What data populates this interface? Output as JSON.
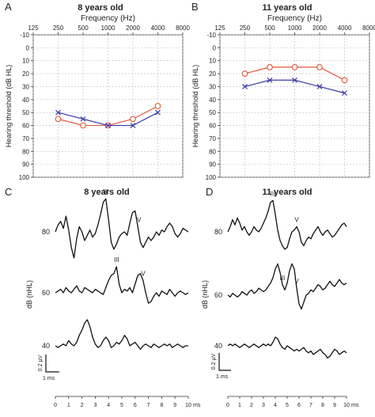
{
  "panels_text": {
    "A": {
      "letter": "A",
      "title": "8 years old"
    },
    "B": {
      "letter": "B",
      "title": "11 years old"
    },
    "C": {
      "letter": "C",
      "title": "8 years old"
    },
    "D": {
      "letter": "D",
      "title": "11 years old"
    }
  },
  "colors": {
    "right_ear": "#e0573a",
    "left_ear": "#3a3aa8",
    "trace": "#111111",
    "grid": "#bbbbbb"
  },
  "chart_data": [
    {
      "id": "A",
      "type": "line",
      "title": "8 years old",
      "xlabel": "Frequency (Hz)",
      "ylabel": "Hearing threshold (dB HL)",
      "x_scale": "log2",
      "x_ticks": [
        "125",
        "250",
        "500",
        "1000",
        "2000",
        "4000",
        "8000"
      ],
      "y_ticks": [
        "-10",
        "0",
        "10",
        "20",
        "30",
        "40",
        "50",
        "60",
        "70",
        "80",
        "90",
        "100"
      ],
      "ylim": [
        -10,
        100
      ],
      "y_inverted": true,
      "grid": true,
      "x": [
        250,
        500,
        1000,
        2000,
        4000
      ],
      "series": [
        {
          "marker": "circle",
          "color": "#e0573a",
          "values": [
            55,
            60,
            60,
            55,
            45
          ]
        },
        {
          "marker": "x",
          "color": "#3a3aa8",
          "values": [
            50,
            55,
            60,
            60,
            50
          ]
        }
      ]
    },
    {
      "id": "B",
      "type": "line",
      "title": "11 years old",
      "xlabel": "Frequency (Hz)",
      "ylabel": "Hearing threshold (dB HL)",
      "x_scale": "log2",
      "x_ticks": [
        "125",
        "250",
        "500",
        "1000",
        "2000",
        "4000",
        "8000"
      ],
      "y_ticks": [
        "-10",
        "0",
        "10",
        "20",
        "30",
        "40",
        "50",
        "60",
        "70",
        "80",
        "90",
        "100"
      ],
      "ylim": [
        -10,
        100
      ],
      "y_inverted": true,
      "grid": true,
      "x": [
        250,
        500,
        1000,
        2000,
        4000
      ],
      "series": [
        {
          "marker": "circle",
          "color": "#e0573a",
          "values": [
            20,
            15,
            15,
            15,
            25
          ]
        },
        {
          "marker": "x",
          "color": "#3a3aa8",
          "values": [
            30,
            25,
            25,
            30,
            35
          ]
        }
      ]
    },
    {
      "id": "C",
      "type": "line",
      "title": "8 years old",
      "ylabel": "dB (nHL)",
      "xlim": [
        0,
        10
      ],
      "x_ticks": [
        "0",
        "1",
        "2",
        "3",
        "4",
        "5",
        "6",
        "7",
        "8",
        "9",
        "10"
      ],
      "x_unit": "ms",
      "scale_bar": {
        "x": "1 ms",
        "y": "0.2 µV"
      },
      "traces": [
        {
          "level": "80",
          "waves": [
            {
              "label": "III",
              "t": 3.8
            },
            {
              "label": "V",
              "t": 6.3
            }
          ],
          "t": [
            0,
            0.2,
            0.4,
            0.6,
            0.8,
            1.0,
            1.2,
            1.4,
            1.6,
            1.8,
            2.0,
            2.2,
            2.4,
            2.6,
            2.8,
            3.0,
            3.2,
            3.4,
            3.6,
            3.8,
            4.0,
            4.2,
            4.4,
            4.6,
            4.8,
            5.0,
            5.2,
            5.4,
            5.6,
            5.8,
            6.0,
            6.2,
            6.4,
            6.6,
            6.8,
            7.0,
            7.2,
            7.4,
            7.6,
            7.8,
            8.0,
            8.2,
            8.4,
            8.6,
            8.8,
            9.0,
            9.2,
            9.4,
            9.6,
            9.8,
            10.0
          ],
          "v": [
            0.0,
            0.08,
            0.12,
            0.04,
            0.18,
            0.02,
            -0.18,
            -0.3,
            -0.08,
            0.06,
            0.0,
            -0.1,
            -0.04,
            0.02,
            -0.06,
            -0.02,
            0.08,
            0.2,
            0.34,
            0.38,
            0.14,
            -0.12,
            -0.2,
            -0.14,
            -0.06,
            -0.02,
            0.0,
            -0.04,
            0.1,
            0.22,
            0.24,
            0.06,
            -0.12,
            -0.18,
            -0.12,
            -0.06,
            -0.1,
            -0.06,
            0.0,
            -0.04,
            0.02,
            0.0,
            0.06,
            0.1,
            0.06,
            -0.02,
            -0.06,
            -0.02,
            0.04,
            0.02,
            0.0
          ]
        },
        {
          "level": "60",
          "waves": [
            {
              "label": "III",
              "t": 4.6
            },
            {
              "label": "V",
              "t": 6.6
            }
          ],
          "t": [
            0,
            0.2,
            0.4,
            0.6,
            0.8,
            1.0,
            1.2,
            1.4,
            1.6,
            1.8,
            2.0,
            2.2,
            2.4,
            2.6,
            2.8,
            3.0,
            3.2,
            3.4,
            3.6,
            3.8,
            4.0,
            4.2,
            4.4,
            4.6,
            4.8,
            5.0,
            5.2,
            5.4,
            5.6,
            5.8,
            6.0,
            6.2,
            6.4,
            6.6,
            6.8,
            7.0,
            7.2,
            7.4,
            7.6,
            7.8,
            8.0,
            8.2,
            8.4,
            8.6,
            8.8,
            9.0,
            9.2,
            9.4,
            9.6,
            9.8,
            10.0
          ],
          "v": [
            0.0,
            0.02,
            0.04,
            0.0,
            0.06,
            0.02,
            0.0,
            0.04,
            0.08,
            0.02,
            0.0,
            0.06,
            0.04,
            0.02,
            0.0,
            0.04,
            0.02,
            0.0,
            -0.02,
            0.06,
            0.14,
            0.2,
            0.22,
            0.3,
            0.1,
            0.0,
            0.04,
            0.02,
            0.06,
            0.0,
            0.1,
            0.2,
            0.22,
            0.14,
            0.0,
            -0.12,
            -0.1,
            -0.04,
            0.0,
            -0.04,
            0.02,
            0.0,
            -0.02,
            0.04,
            0.0,
            -0.04,
            0.0,
            0.02,
            0.0,
            -0.02,
            0.0
          ]
        },
        {
          "level": "40",
          "waves": [],
          "t": [
            0,
            0.2,
            0.4,
            0.6,
            0.8,
            1.0,
            1.2,
            1.4,
            1.6,
            1.8,
            2.0,
            2.2,
            2.4,
            2.6,
            2.8,
            3.0,
            3.2,
            3.4,
            3.6,
            3.8,
            4.0,
            4.2,
            4.4,
            4.6,
            4.8,
            5.0,
            5.2,
            5.4,
            5.6,
            5.8,
            6.0,
            6.2,
            6.4,
            6.6,
            6.8,
            7.0,
            7.2,
            7.4,
            7.6,
            7.8,
            8.0,
            8.2,
            8.4,
            8.6,
            8.8,
            9.0,
            9.2,
            9.4,
            9.6,
            9.8,
            10.0
          ],
          "v": [
            0.0,
            -0.02,
            0.0,
            0.02,
            0.0,
            0.06,
            0.02,
            0.0,
            0.04,
            0.12,
            0.18,
            0.26,
            0.3,
            0.22,
            0.1,
            0.02,
            -0.02,
            0.0,
            0.06,
            0.1,
            0.06,
            -0.02,
            0.0,
            0.04,
            0.02,
            0.06,
            0.12,
            0.08,
            0.0,
            0.02,
            0.04,
            0.0,
            -0.04,
            0.0,
            0.02,
            0.0,
            -0.02,
            0.02,
            0.0,
            -0.02,
            0.0,
            0.02,
            0.0,
            0.02,
            -0.02,
            0.0,
            0.02,
            0.0,
            -0.02,
            0.0,
            0.0
          ]
        }
      ]
    },
    {
      "id": "D",
      "type": "line",
      "title": "11 years old",
      "ylabel": "dB (nHL)",
      "xlim": [
        0,
        10
      ],
      "x_ticks": [
        "0",
        "1",
        "2",
        "3",
        "4",
        "5",
        "6",
        "7",
        "8",
        "9",
        "10"
      ],
      "x_unit": "ms",
      "scale_bar": {
        "x": "1 ms",
        "y": "0.2 µV"
      },
      "traces": [
        {
          "level": "80",
          "waves": [
            {
              "label": "III",
              "t": 3.8
            },
            {
              "label": "V",
              "t": 5.8
            }
          ],
          "t": [
            0,
            0.2,
            0.4,
            0.6,
            0.8,
            1.0,
            1.2,
            1.4,
            1.6,
            1.8,
            2.0,
            2.2,
            2.4,
            2.6,
            2.8,
            3.0,
            3.2,
            3.4,
            3.6,
            3.8,
            4.0,
            4.2,
            4.4,
            4.6,
            4.8,
            5.0,
            5.2,
            5.4,
            5.6,
            5.8,
            6.0,
            6.2,
            6.4,
            6.6,
            6.8,
            7.0,
            7.2,
            7.4,
            7.6,
            7.8,
            8.0,
            8.2,
            8.4,
            8.6,
            8.8,
            9.0,
            9.2,
            9.4,
            9.6,
            9.8,
            10.0
          ],
          "v": [
            0.0,
            0.06,
            0.14,
            0.08,
            0.16,
            0.1,
            0.02,
            0.06,
            0.0,
            -0.04,
            0.0,
            0.06,
            0.02,
            0.0,
            0.04,
            0.1,
            0.16,
            0.24,
            0.34,
            0.36,
            0.2,
            0.02,
            -0.1,
            -0.16,
            -0.2,
            -0.18,
            -0.08,
            0.0,
            0.02,
            0.06,
            0.0,
            -0.12,
            -0.16,
            -0.1,
            -0.06,
            -0.08,
            -0.02,
            0.02,
            0.06,
            0.0,
            -0.04,
            0.0,
            0.02,
            -0.02,
            -0.06,
            -0.04,
            0.0,
            0.04,
            0.08,
            0.1,
            0.06
          ]
        },
        {
          "level": "60",
          "waves": [
            {
              "label": "III",
              "t": 4.6
            },
            {
              "label": "V",
              "t": 5.8
            }
          ],
          "t": [
            0,
            0.2,
            0.4,
            0.6,
            0.8,
            1.0,
            1.2,
            1.4,
            1.6,
            1.8,
            2.0,
            2.2,
            2.4,
            2.6,
            2.8,
            3.0,
            3.2,
            3.4,
            3.6,
            3.8,
            4.0,
            4.2,
            4.4,
            4.6,
            4.8,
            5.0,
            5.2,
            5.4,
            5.6,
            5.8,
            6.0,
            6.2,
            6.4,
            6.6,
            6.8,
            7.0,
            7.2,
            7.4,
            7.6,
            7.8,
            8.0,
            8.2,
            8.4,
            8.6,
            8.8,
            9.0,
            9.2,
            9.4,
            9.6,
            9.8,
            10.0
          ],
          "v": [
            0.0,
            -0.02,
            0.02,
            0.0,
            -0.02,
            0.0,
            0.04,
            0.02,
            0.0,
            0.04,
            0.06,
            0.02,
            0.04,
            0.08,
            0.06,
            0.04,
            0.06,
            0.1,
            0.14,
            0.2,
            0.3,
            0.36,
            0.26,
            0.12,
            0.06,
            0.14,
            0.28,
            0.36,
            0.3,
            0.08,
            -0.1,
            -0.16,
            -0.08,
            0.0,
            0.02,
            0.06,
            0.04,
            0.08,
            0.12,
            0.1,
            0.06,
            0.08,
            0.12,
            0.16,
            0.12,
            0.1,
            0.14,
            0.18,
            0.14,
            0.12,
            0.14
          ]
        },
        {
          "level": "40",
          "waves": [],
          "t": [
            0,
            0.2,
            0.4,
            0.6,
            0.8,
            1.0,
            1.2,
            1.4,
            1.6,
            1.8,
            2.0,
            2.2,
            2.4,
            2.6,
            2.8,
            3.0,
            3.2,
            3.4,
            3.6,
            3.8,
            4.0,
            4.2,
            4.4,
            4.6,
            4.8,
            5.0,
            5.2,
            5.4,
            5.6,
            5.8,
            6.0,
            6.2,
            6.4,
            6.6,
            6.8,
            7.0,
            7.2,
            7.4,
            7.6,
            7.8,
            8.0,
            8.2,
            8.4,
            8.6,
            8.8,
            9.0,
            9.2,
            9.4,
            9.6,
            9.8,
            10.0
          ],
          "v": [
            0.0,
            0.02,
            0.0,
            0.02,
            0.0,
            -0.02,
            0.0,
            0.02,
            0.0,
            -0.02,
            0.0,
            0.02,
            0.0,
            -0.02,
            0.0,
            0.02,
            0.0,
            0.02,
            0.0,
            0.04,
            0.1,
            0.08,
            0.02,
            -0.02,
            -0.04,
            0.0,
            -0.02,
            -0.04,
            -0.06,
            -0.04,
            -0.06,
            -0.04,
            -0.02,
            -0.06,
            -0.08,
            -0.06,
            -0.1,
            -0.08,
            -0.06,
            -0.04,
            -0.08,
            -0.1,
            -0.14,
            -0.12,
            -0.08,
            -0.04,
            -0.06,
            -0.1,
            -0.08,
            -0.06,
            -0.08
          ]
        }
      ]
    }
  ]
}
